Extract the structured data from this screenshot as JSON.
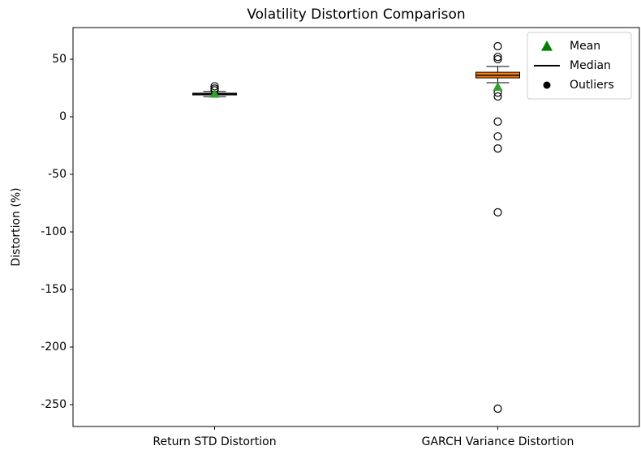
{
  "chart_data": {
    "type": "box",
    "title": "Volatility Distortion Comparison",
    "y_label": "Distortion (%)",
    "categories": [
      "Return STD Distortion",
      "GARCH Variance Distortion"
    ],
    "boxes": [
      {
        "whislo": 17.5,
        "q1": 19,
        "median": 19.8,
        "q3": 20.5,
        "whishi": 22,
        "mean": 20,
        "fliers": [
          26.5,
          24.5,
          23
        ]
      },
      {
        "whislo": 29.6,
        "q1": 33.8,
        "median": 36,
        "q3": 38.7,
        "whishi": 43.7,
        "mean": 26,
        "fliers": [
          61.3,
          52,
          50,
          21,
          17.6,
          -4.2,
          -17,
          -27.5,
          -83,
          -253.5
        ]
      }
    ],
    "ylim": [
      -269,
      77.5
    ],
    "yticks": [
      50,
      0,
      -50,
      -100,
      -150,
      -200,
      -250
    ],
    "box_color": "#ff7f0e",
    "mean_color": "#2ca02c",
    "legend": {
      "position": "upper right",
      "entries": [
        {
          "name": "Mean",
          "marker": "triangle",
          "color": "#008000"
        },
        {
          "name": "Median",
          "marker": "line",
          "color": "#000000"
        },
        {
          "name": "Outliers",
          "marker": "dot",
          "color": "#000000"
        }
      ]
    }
  }
}
